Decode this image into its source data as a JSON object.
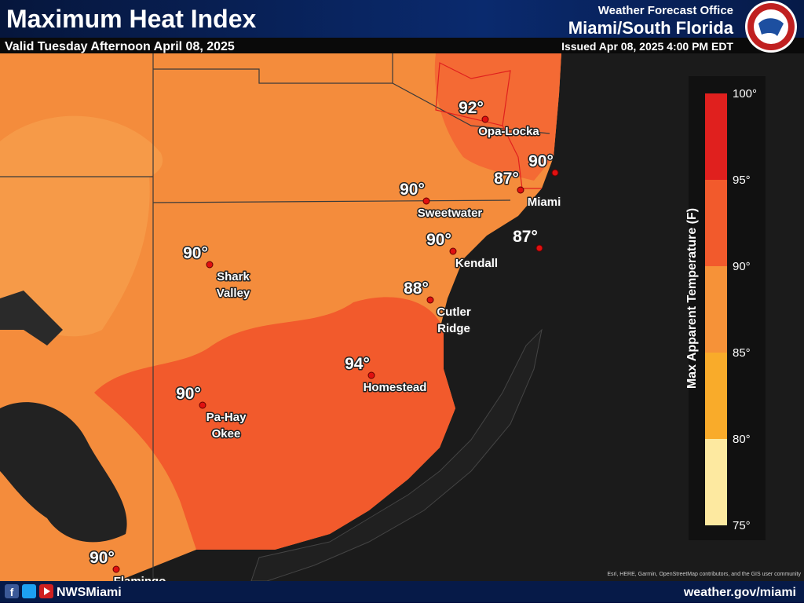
{
  "header": {
    "title": "Maximum Heat Index",
    "valid": "Valid Tuesday Afternoon April 08, 2025",
    "office": "Weather Forecast Office",
    "office_name": "Miami/South Florida",
    "issued": "Issued Apr 08, 2025 4:00 PM EDT"
  },
  "points": [
    {
      "temp": "92°",
      "name": [
        "Opa-Locka"
      ]
    },
    {
      "temp": "90°"
    },
    {
      "temp": "87°",
      "name": [
        "Miami"
      ]
    },
    {
      "temp": "90°",
      "name": [
        "Sweetwater"
      ]
    },
    {
      "temp": "90°",
      "name": [
        "Kendall"
      ]
    },
    {
      "temp": "87°"
    },
    {
      "temp": "88°",
      "name": [
        "Cutler",
        "Ridge"
      ]
    },
    {
      "temp": "94°",
      "name": [
        "Homestead"
      ]
    },
    {
      "temp": "90°",
      "name": [
        "Shark",
        "Valley"
      ]
    },
    {
      "temp": "90°",
      "name": [
        "Pa-Hay",
        "Okee"
      ]
    },
    {
      "temp": "90°",
      "name": [
        "Flamingo"
      ]
    }
  ],
  "legend": {
    "title": "Max Apparent Temperature (F)",
    "ticks": [
      "100°",
      "95°",
      "90°",
      "85°",
      "80°",
      "75°"
    ],
    "colors": [
      "#e0201e",
      "#f25a2c",
      "#f69238",
      "#f9ab2a",
      "#fde9a0"
    ]
  },
  "footer": {
    "handle": "NWSMiami",
    "url": "weather.gov/miami",
    "attribution": "Esri, HERE, Garmin, OpenStreetMap contributors, and the GIS user community"
  }
}
